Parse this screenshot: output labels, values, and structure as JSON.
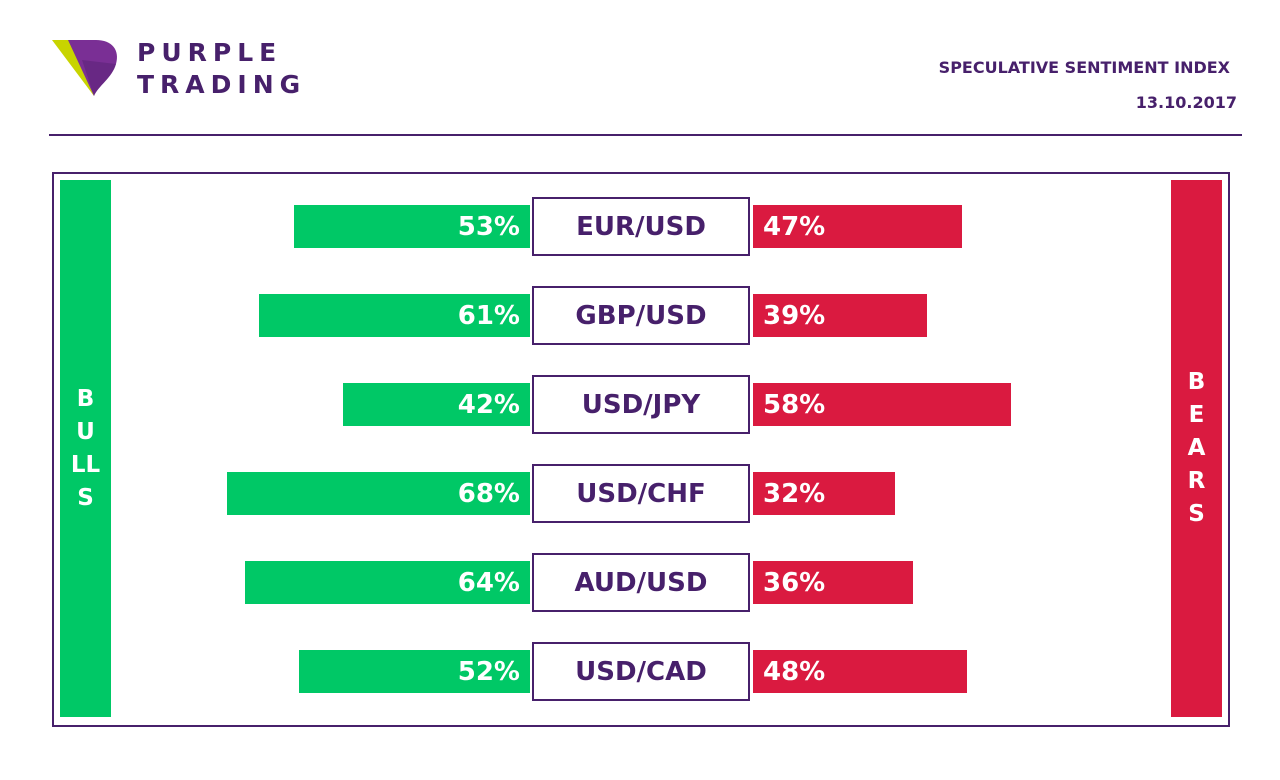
{
  "header": {
    "brand_line1": "PURPLE",
    "brand_line2": "TRADING",
    "title": "SPECULATIVE SENTIMENT INDEX",
    "date": "13.10.2017"
  },
  "labels": {
    "bulls": "BULLS",
    "bears": "BEARS"
  },
  "colors": {
    "bulls": "#00c866",
    "bears": "#da1a40",
    "brand": "#47206b",
    "logo_accent": "#c8d400"
  },
  "chart_data": {
    "type": "bar",
    "categories": [
      "EUR/USD",
      "GBP/USD",
      "USD/JPY",
      "USD/CHF",
      "AUD/USD",
      "USD/CAD"
    ],
    "series": [
      {
        "name": "BULLS",
        "values": [
          53,
          61,
          42,
          68,
          64,
          52
        ]
      },
      {
        "name": "BEARS",
        "values": [
          47,
          39,
          58,
          32,
          36,
          48
        ]
      }
    ],
    "unit": "%"
  }
}
